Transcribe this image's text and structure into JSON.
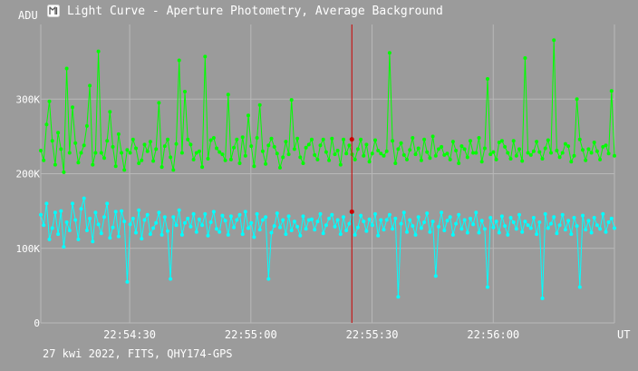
{
  "window": {
    "icon": "light-curve-app-icon",
    "title": "Light Curve - Aperture Photometry, Average Background",
    "footer": "27 kwi 2022, FITS, QHY174-GPS"
  },
  "colors": {
    "background": "#9b9b9b",
    "grid": "#b8b8b8",
    "text": "#ffffff",
    "series_1": "#00ff00",
    "series_2": "#00ffff",
    "cursor": "#cc0000"
  },
  "chart_data": {
    "type": "line",
    "title": "Light Curve - Aperture Photometry, Average Background",
    "ylabel": "ADU",
    "xlabel": "UT",
    "ylim": [
      0,
      400000
    ],
    "xlim": [
      "22:54:08",
      "22:56:30"
    ],
    "grid": true,
    "y_ticks": [
      {
        "value": 0,
        "label": "0"
      },
      {
        "value": 100000,
        "label": "100K"
      },
      {
        "value": 200000,
        "label": "200K"
      },
      {
        "value": 300000,
        "label": "300K"
      }
    ],
    "x_ticks": [
      {
        "value": "22:54:30",
        "label": "22:54:30"
      },
      {
        "value": "22:55:00",
        "label": "22:55:00"
      },
      {
        "value": "22:55:30",
        "label": "22:55:30"
      },
      {
        "value": "22:56:00",
        "label": "22:56:00"
      }
    ],
    "cursor": {
      "x": "22:55:25",
      "values": [
        246000,
        149000
      ]
    },
    "series_note": "approximate noisy cadence; values estimated from the plot",
    "series": [
      {
        "color": "#00ff00",
        "x_start": "22:54:08",
        "x_end": "22:56:30",
        "values": [
          231000,
          218000,
          266000,
          297000,
          244000,
          212000,
          255000,
          233000,
          202000,
          341000,
          228000,
          289000,
          241000,
          215000,
          228000,
          238000,
          264000,
          318000,
          212000,
          228000,
          364000,
          228000,
          221000,
          244000,
          283000,
          236000,
          210000,
          253000,
          228000,
          205000,
          232000,
          228000,
          246000,
          234000,
          214000,
          218000,
          239000,
          230000,
          243000,
          217000,
          233000,
          295000,
          209000,
          237000,
          246000,
          222000,
          205000,
          240000,
          352000,
          228000,
          310000,
          246000,
          239000,
          219000,
          228000,
          230000,
          209000,
          357000,
          220000,
          245000,
          248000,
          234000,
          229000,
          226000,
          218000,
          306000,
          219000,
          235000,
          246000,
          214000,
          249000,
          224000,
          278000,
          237000,
          210000,
          248000,
          292000,
          230000,
          213000,
          238000,
          247000,
          236000,
          227000,
          208000,
          222000,
          243000,
          226000,
          299000,
          233000,
          247000,
          222000,
          214000,
          235000,
          239000,
          246000,
          225000,
          219000,
          238000,
          246000,
          229000,
          218000,
          247000,
          226000,
          231000,
          212000,
          246000,
          227000,
          238000,
          226000,
          219000,
          233000,
          246000,
          224000,
          239000,
          216000,
          227000,
          245000,
          231000,
          227000,
          224000,
          230000,
          362000,
          244000,
          214000,
          233000,
          241000,
          225000,
          219000,
          232000,
          248000,
          226000,
          234000,
          218000,
          246000,
          229000,
          221000,
          250000,
          224000,
          233000,
          236000,
          225000,
          227000,
          219000,
          243000,
          231000,
          214000,
          237000,
          233000,
          222000,
          244000,
          228000,
          228000,
          248000,
          216000,
          234000,
          327000,
          226000,
          229000,
          219000,
          242000,
          244000,
          236000,
          228000,
          220000,
          244000,
          224000,
          233000,
          217000,
          355000,
          228000,
          225000,
          230000,
          243000,
          229000,
          220000,
          234000,
          245000,
          228000,
          379000,
          231000,
          222000,
          228000,
          240000,
          237000,
          216000,
          224000,
          300000,
          246000,
          232000,
          218000,
          233000,
          228000,
          242000,
          230000,
          219000,
          236000,
          238000,
          227000,
          311000,
          224000
        ]
      },
      {
        "color": "#00ffff",
        "x_start": "22:54:08",
        "x_end": "22:56:30",
        "values": [
          145000,
          131000,
          160000,
          112000,
          127000,
          148000,
          119000,
          150000,
          102000,
          135000,
          124000,
          160000,
          138000,
          112000,
          153000,
          167000,
          124000,
          140000,
          109000,
          148000,
          132000,
          120000,
          142000,
          160000,
          114000,
          128000,
          149000,
          116000,
          150000,
          136000,
          55000,
          132000,
          140000,
          121000,
          151000,
          113000,
          138000,
          145000,
          119000,
          127000,
          134000,
          148000,
          118000,
          142000,
          123000,
          59000,
          142000,
          131000,
          151000,
          118000,
          134000,
          140000,
          129000,
          146000,
          122000,
          139000,
          131000,
          146000,
          117000,
          135000,
          149000,
          126000,
          122000,
          144000,
          137000,
          118000,
          143000,
          128000,
          138000,
          145000,
          119000,
          149000,
          127000,
          134000,
          115000,
          146000,
          125000,
          138000,
          142000,
          59000,
          121000,
          130000,
          147000,
          128000,
          138000,
          119000,
          143000,
          124000,
          136000,
          129000,
          117000,
          143000,
          126000,
          138000,
          139000,
          125000,
          136000,
          146000,
          120000,
          131000,
          140000,
          145000,
          129000,
          138000,
          119000,
          142000,
          124000,
          133000,
          145000,
          118000,
          128000,
          144000,
          136000,
          123000,
          139000,
          131000,
          146000,
          117000,
          138000,
          125000,
          138000,
          145000,
          126000,
          140000,
          35000,
          133000,
          148000,
          122000,
          138000,
          130000,
          118000,
          142000,
          127000,
          135000,
          147000,
          122000,
          136000,
          63000,
          129000,
          148000,
          124000,
          137000,
          142000,
          118000,
          133000,
          145000,
          126000,
          138000,
          121000,
          140000,
          132000,
          148000,
          121000,
          137000,
          126000,
          48000,
          141000,
          128000,
          136000,
          121000,
          143000,
          130000,
          118000,
          141000,
          135000,
          126000,
          145000,
          122000,
          136000,
          131000,
          127000,
          141000,
          119000,
          135000,
          33000,
          146000,
          127000,
          133000,
          142000,
          120000,
          131000,
          145000,
          125000,
          137000,
          119000,
          141000,
          130000,
          48000,
          144000,
          125000,
          137000,
          121000,
          141000,
          131000,
          126000,
          146000,
          122000,
          135000,
          140000,
          127000
        ]
      }
    ]
  }
}
